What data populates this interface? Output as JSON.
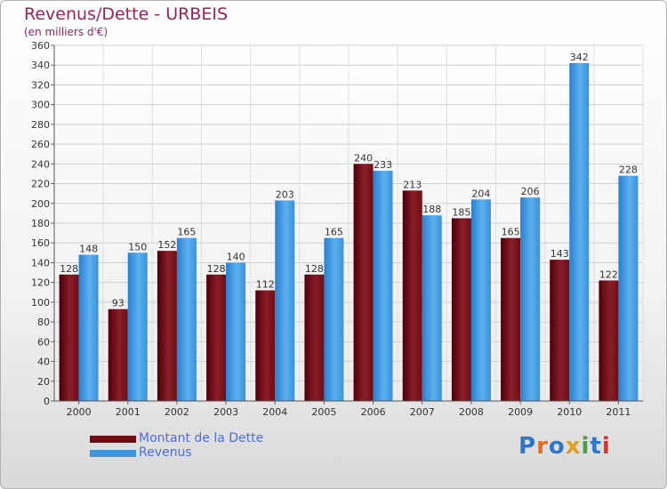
{
  "header": {
    "title": "Revenus/Dette - URBEIS",
    "subtitle": "(en milliers d'€)"
  },
  "chart_data": {
    "type": "bar",
    "title": "Revenus/Dette - URBEIS",
    "subtitle": "(en milliers d'€)",
    "xlabel": "",
    "ylabel": "",
    "categories": [
      "2000",
      "2001",
      "2002",
      "2003",
      "2004",
      "2005",
      "2006",
      "2007",
      "2008",
      "2009",
      "2010",
      "2011"
    ],
    "series": [
      {
        "name": "Montant de la Dette",
        "values": [
          128,
          93,
          152,
          128,
          112,
          128,
          240,
          213,
          185,
          165,
          143,
          122
        ],
        "color": "#7a1020"
      },
      {
        "name": "Revenus",
        "values": [
          148,
          150,
          165,
          140,
          203,
          165,
          233,
          188,
          204,
          206,
          342,
          228
        ],
        "color": "#3d95de"
      }
    ],
    "ylim": [
      0,
      360
    ],
    "yticks": [
      0,
      20,
      40,
      60,
      80,
      100,
      120,
      140,
      160,
      180,
      200,
      220,
      240,
      260,
      280,
      300,
      320,
      340,
      360
    ],
    "grid": true,
    "legend_position": "bottom-left"
  },
  "legend": {
    "items": [
      {
        "label": "Montant de la Dette",
        "color": "#6e0d14"
      },
      {
        "label": "Revenus",
        "color": "#3d95de"
      }
    ]
  },
  "logo": {
    "text": "Proxiti",
    "colors": [
      "#2f78c8",
      "#e07020",
      "#2f78c8",
      "#e0a020",
      "#4aa040",
      "#2f78c8",
      "#e03030"
    ]
  }
}
